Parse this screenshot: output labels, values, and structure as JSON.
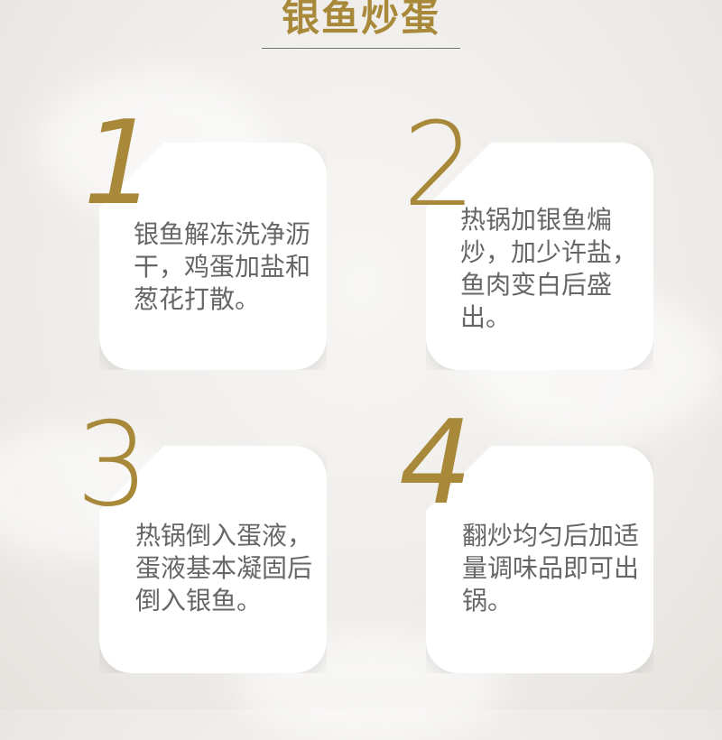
{
  "title": "银鱼炒蛋",
  "steps": [
    {
      "number": "1",
      "text": "银鱼解冻洗净沥干，鸡蛋加盐和葱花打散。"
    },
    {
      "number": "2",
      "text": "热锅加银鱼煸炒，加少许盐，鱼肉变白后盛出。"
    },
    {
      "number": "3",
      "text": "热锅倒入蛋液，蛋液基本凝固后倒入银鱼。"
    },
    {
      "number": "4",
      "text": "翻炒均匀后加适量调味品即可出锅。"
    }
  ],
  "colors": {
    "accent": "#a8893a",
    "card": "#ffffff",
    "text": "#666666"
  }
}
